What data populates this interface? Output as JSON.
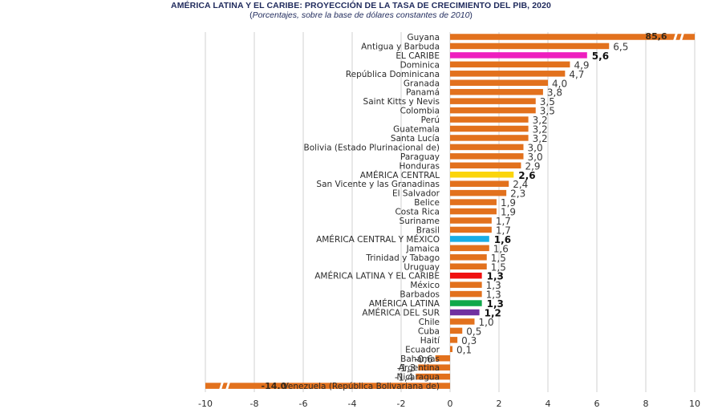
{
  "chart_data": {
    "type": "bar",
    "orientation": "horizontal",
    "title": "AMÉRICA LATINA Y EL CARIBE: PROYECCIÓN DE LA TASA DE CRECIMIENTO DEL PIB, 2020",
    "subtitle_open": "(",
    "subtitle_text": "Porcentajes, sobre la base de dólares constantes de 2010",
    "subtitle_close": ")",
    "xlabel": "",
    "ylabel": "",
    "xlim": [
      -10,
      10
    ],
    "xticks": [
      -10,
      -8,
      -6,
      -4,
      -2,
      0,
      2,
      4,
      6,
      8,
      10
    ],
    "xtick_labels": [
      "-10",
      "-8",
      "-6",
      "-4",
      "-2",
      "0",
      "2",
      "4",
      "6",
      "8",
      "10"
    ],
    "grid": "vertical",
    "legend": "none",
    "colors": {
      "default": "#e2711d",
      "el_caribe": "#ee1fbf",
      "america_central": "#fbd50c",
      "america_central_y_mexico": "#18aee6",
      "america_latina_y_el_caribe": "#f01010",
      "america_latina": "#10a84a",
      "america_del_sur": "#7030a0",
      "gridline": "#d9d9d9",
      "axis_break": "#ffffff"
    },
    "categories": [
      "Guyana",
      "Antigua y Barbuda",
      "EL CARIBE",
      "Dominica",
      "República Dominicana",
      "Granada",
      "Panamá",
      "Saint Kitts y Nevis",
      "Colombia",
      "Perú",
      "Guatemala",
      "Santa Lucía",
      "Bolivia (Estado Plurinacional de)",
      "Paraguay",
      "Honduras",
      "AMÉRICA CENTRAL",
      "San Vicente y las Granadinas",
      "El Salvador",
      "Belice",
      "Costa Rica",
      "Suriname",
      "Brasil",
      "AMÉRICA CENTRAL Y MÉXICO",
      "Jamaica",
      "Trinidad y Tabago",
      "Uruguay",
      "AMÉRICA LATINA Y EL CARIBE",
      "México",
      "Barbados",
      "AMÉRICA LATINA",
      "AMÉRICA DEL SUR",
      "Chile",
      "Cuba",
      "Haití",
      "Ecuador",
      "Bahamas",
      "Argentina",
      "Nicaragua",
      "Venezuela (República Bolivariana de)"
    ],
    "values": [
      85.6,
      6.5,
      5.6,
      4.9,
      4.7,
      4.0,
      3.8,
      3.5,
      3.5,
      3.2,
      3.2,
      3.2,
      3.0,
      3.0,
      2.9,
      2.6,
      2.4,
      2.3,
      1.9,
      1.9,
      1.7,
      1.7,
      1.6,
      1.6,
      1.5,
      1.5,
      1.3,
      1.3,
      1.3,
      1.3,
      1.2,
      1.0,
      0.5,
      0.3,
      0.1,
      -0.6,
      -1.3,
      -1.4,
      -14.0
    ],
    "value_labels": [
      "85,6",
      "6,5",
      "5,6",
      "4,9",
      "4,7",
      "4,0",
      "3,8",
      "3,5",
      "3,5",
      "3,2",
      "3,2",
      "3,2",
      "3,0",
      "3,0",
      "2,9",
      "2,6",
      "2,4",
      "2,3",
      "1,9",
      "1,9",
      "1,7",
      "1,7",
      "1,6",
      "1,6",
      "1,5",
      "1,5",
      "1,3",
      "1,3",
      "1,3",
      "1,3",
      "1,2",
      "1,0",
      "0,5",
      "0,3",
      "0,1",
      "-0,6",
      "-1,3",
      "-1,4",
      "-14.0"
    ],
    "aggregates": [
      "EL CARIBE",
      "AMÉRICA CENTRAL",
      "AMÉRICA CENTRAL Y MÉXICO",
      "AMÉRICA LATINA Y EL CARIBE",
      "AMÉRICA LATINA",
      "AMÉRICA DEL SUR"
    ],
    "bar_color_keys": [
      "default",
      "default",
      "el_caribe",
      "default",
      "default",
      "default",
      "default",
      "default",
      "default",
      "default",
      "default",
      "default",
      "default",
      "default",
      "default",
      "america_central",
      "default",
      "default",
      "default",
      "default",
      "default",
      "default",
      "america_central_y_mexico",
      "default",
      "default",
      "default",
      "america_latina_y_el_caribe",
      "default",
      "default",
      "america_latina",
      "america_del_sur",
      "default",
      "default",
      "default",
      "default",
      "default",
      "default",
      "default",
      "default"
    ],
    "broken_axis_bars": [
      "Guyana",
      "Venezuela (República Bolivariana de)"
    ]
  }
}
